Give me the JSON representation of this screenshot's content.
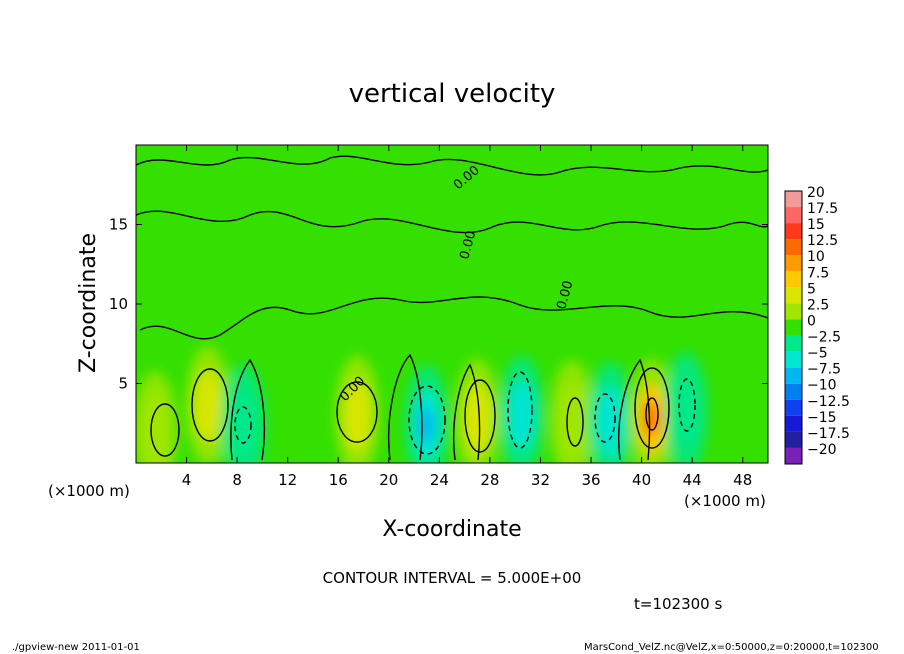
{
  "chart_data": {
    "type": "heatmap",
    "title": "vertical velocity",
    "xlabel": "X-coordinate",
    "ylabel": "Z-coordinate",
    "x_unit": "(×1000 m)",
    "y_unit": "(×1000 m)",
    "xlim": [
      0,
      50
    ],
    "ylim": [
      0,
      20
    ],
    "x_ticks": [
      4,
      8,
      12,
      16,
      20,
      24,
      28,
      32,
      36,
      40,
      44,
      48
    ],
    "y_ticks": [
      5,
      10,
      15
    ],
    "contour_interval_text": "CONTOUR INTERVAL = 5.000E+00",
    "contour_labels": [
      "0.00",
      "0.00",
      "0.00",
      "0.00"
    ],
    "time_text": "t=102300 s",
    "colorbar": {
      "labels": [
        "20",
        "17.5",
        "15",
        "12.5",
        "10",
        "7.5",
        "5",
        "2.5",
        "0",
        "−2.5",
        "−5",
        "−7.5",
        "−10",
        "−12.5",
        "−15",
        "−17.5",
        "−20"
      ],
      "colors": [
        "#f29a9a",
        "#ff6666",
        "#ff3a1a",
        "#ff6a00",
        "#ff9a00",
        "#ffc800",
        "#d8e600",
        "#a0e600",
        "#33e000",
        "#00e88a",
        "#00e6d0",
        "#00b8f0",
        "#0080f0",
        "#1040f0",
        "#1818d8",
        "#2020a0",
        "#7a20b8"
      ]
    },
    "features": [
      {
        "x": 1.5,
        "z": 2.0,
        "value": 4.5
      },
      {
        "x": 5.7,
        "z": 3.6,
        "value": 6.5
      },
      {
        "x": 8.5,
        "z": 2.4,
        "value": -5
      },
      {
        "x": 17.5,
        "z": 3.0,
        "value": 5.5
      },
      {
        "x": 23.0,
        "z": 2.4,
        "value": -8.5
      },
      {
        "x": 27.0,
        "z": 2.8,
        "value": 5.5
      },
      {
        "x": 30.5,
        "z": 3.0,
        "value": -5.5
      },
      {
        "x": 34.5,
        "z": 2.7,
        "value": 5
      },
      {
        "x": 37.5,
        "z": 2.6,
        "value": -6.5
      },
      {
        "x": 40.8,
        "z": 2.8,
        "value": 12
      },
      {
        "x": 43.5,
        "z": 3.2,
        "value": -5
      }
    ],
    "grid": false
  },
  "footer": {
    "left": "./gpview-new   2011-01-01",
    "right": "MarsCond_VelZ.nc@VelZ,x=0:50000,z=0:20000,t=102300"
  }
}
